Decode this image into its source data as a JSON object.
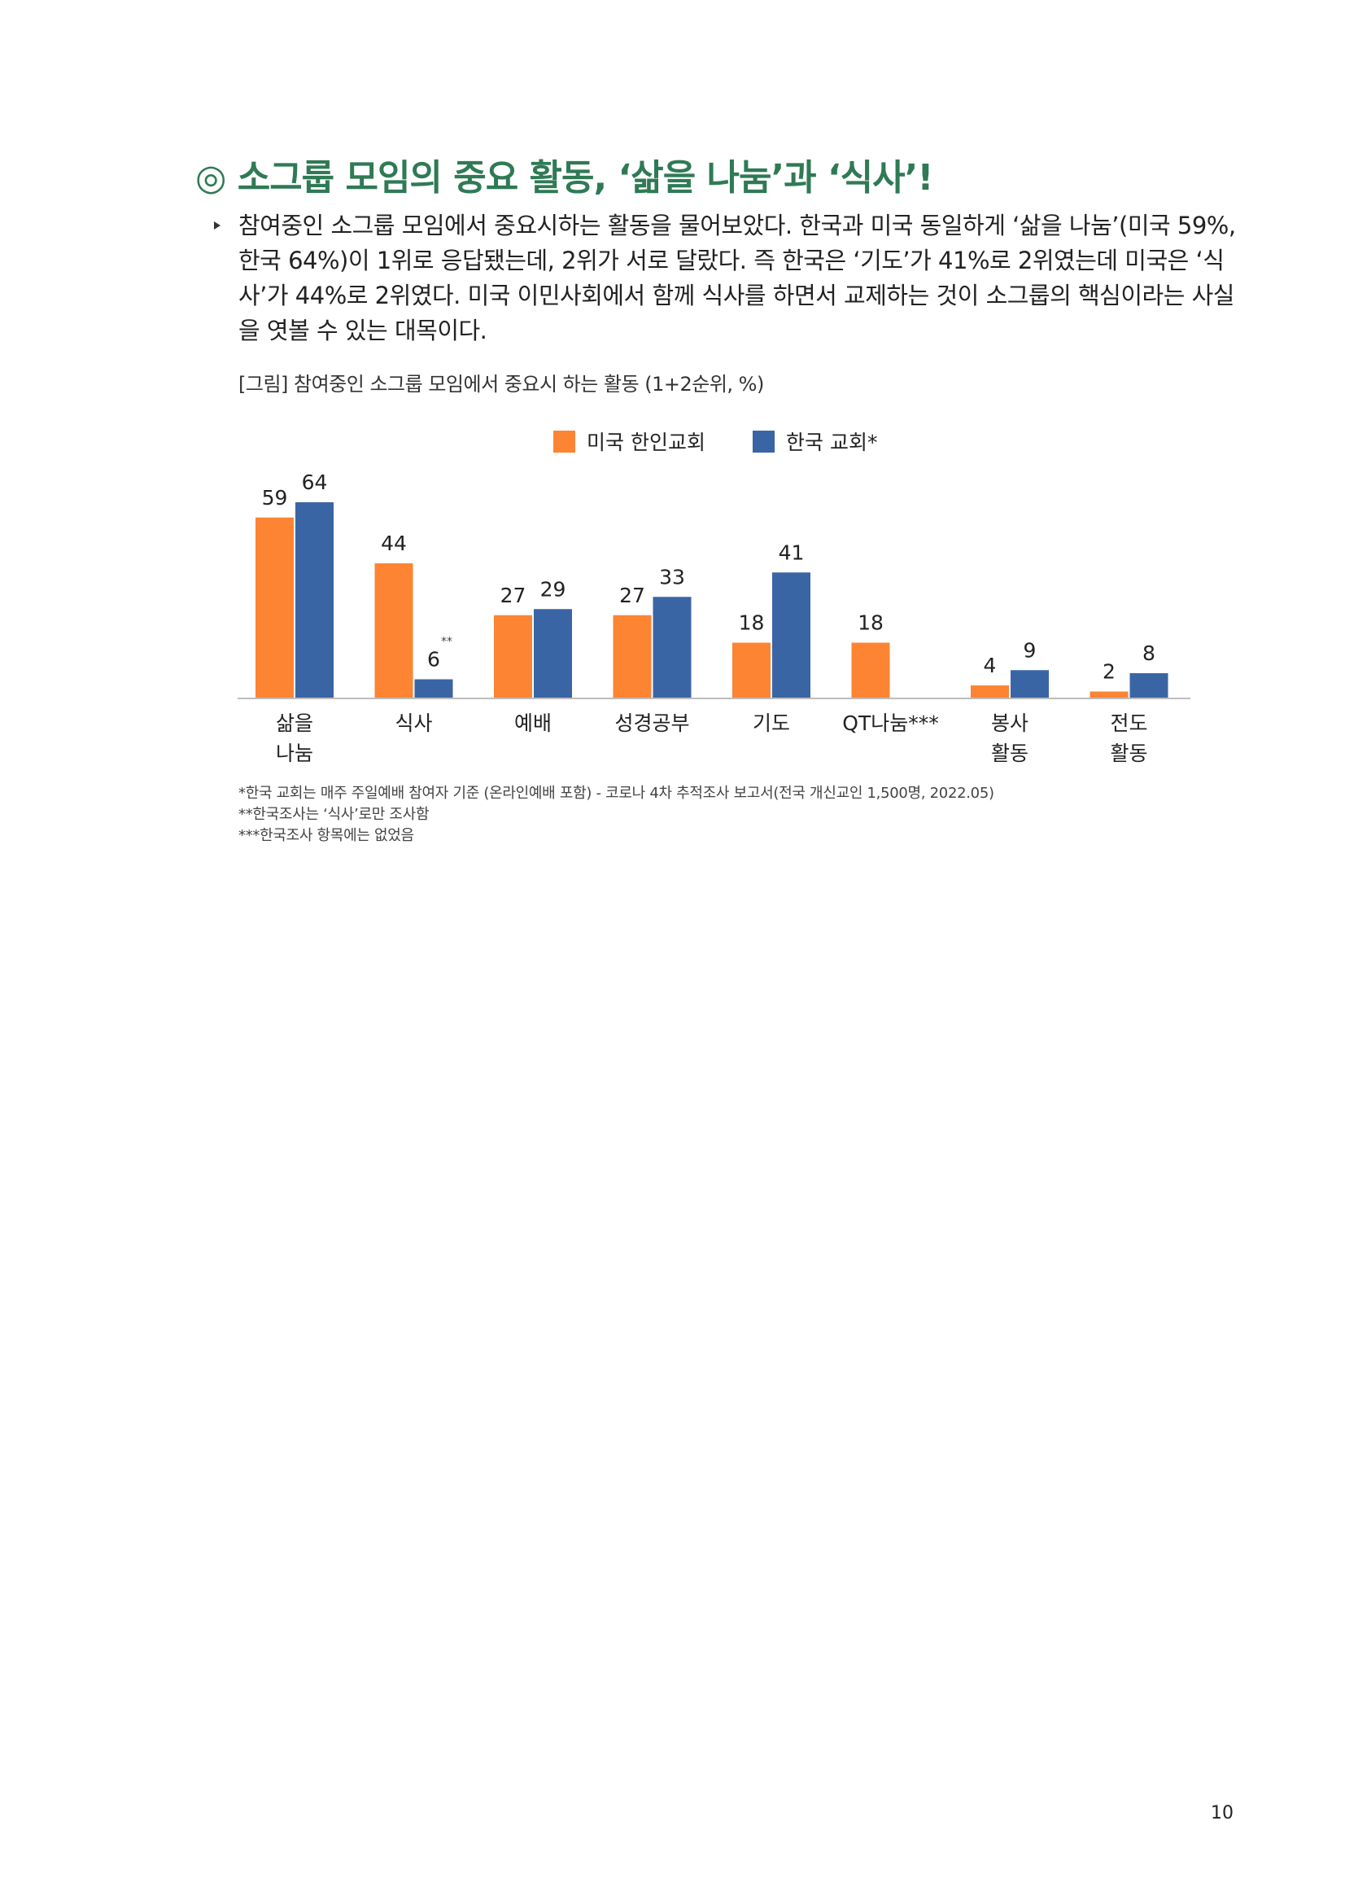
{
  "heading": {
    "title": "◎ 소그룹 모임의 중요 활동, ‘삶을 나눔’과 ‘식사’!"
  },
  "paragraph": {
    "text": "참여중인 소그룹 모임에서 중요시하는 활동을 물어보았다. 한국과 미국 동일하게 ‘삶을 나눔’(미국 59%, 한국 64%)이 1위로 응답됐는데, 2위가 서로 달랐다. 즉 한국은 ‘기도’가 41%로 2위였는데 미국은 ‘식사’가 44%로 2위였다. 미국 이민사회에서 함께 식사를 하면서 교제하는 것이 소그룹의 핵심이라는 사실을 엿볼 수 있는 대목이다."
  },
  "figure": {
    "caption": "[그림] 참여중인 소그룹 모임에서 중요시 하는 활동 (1+2순위, %)"
  },
  "chart_data": {
    "type": "bar",
    "title": "",
    "xlabel": "",
    "ylabel": "",
    "ylim": [
      0,
      70
    ],
    "grid": false,
    "legend_position": "top",
    "categories": [
      "삶을\n나눔",
      "식사",
      "예배",
      "성경공부",
      "기도",
      "QT나눔***",
      "봉사\n활동",
      "전도\n활동"
    ],
    "series": [
      {
        "name": "미국 한인교회",
        "color": "#fd8433",
        "values": [
          59,
          44,
          27,
          27,
          18,
          18,
          4,
          2
        ]
      },
      {
        "name": "한국 교회*",
        "color": "#3a65a5",
        "values": [
          64,
          6,
          29,
          33,
          41,
          null,
          9,
          8
        ]
      }
    ],
    "annotations": [
      {
        "category": "식사",
        "series": "한국 교회*",
        "text": "**"
      }
    ]
  },
  "footnotes": [
    "*한국 교회는 매주 주일예배 참여자 기준 (온라인예배 포함) - 코로나 4차 추적조사 보고서(전국 개신교인 1,500명, 2022.05)",
    "**한국조사는 ‘식사’로만 조사함",
    "***한국조사 항목에는 없었음"
  ],
  "page": {
    "number": "10"
  }
}
